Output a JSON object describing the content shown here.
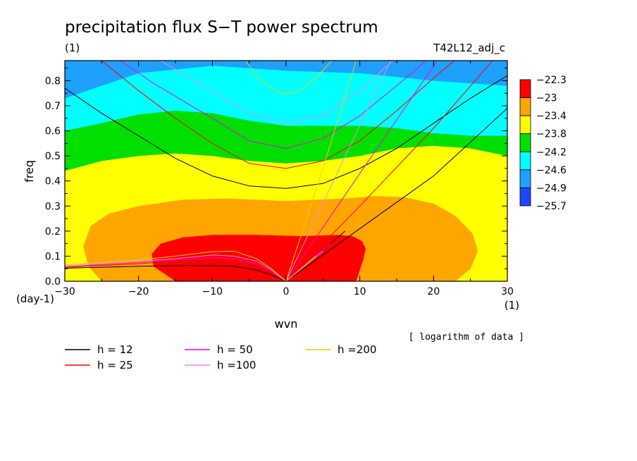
{
  "chart_data": {
    "type": "contour",
    "title": "precipitation flux S−T power spectrum",
    "subtitle_left": "(1)",
    "subtitle_right": "T42L12_adj_c",
    "xlabel": "wvn",
    "ylabel": "freq",
    "x_unit": "(1)",
    "y_unit": "(day-1)",
    "xlim": [
      -30,
      30
    ],
    "ylim": [
      0,
      0.88
    ],
    "x_ticks": [
      -30,
      -20,
      -10,
      0,
      10,
      20,
      30
    ],
    "y_ticks": [
      0.0,
      0.1,
      0.2,
      0.3,
      0.4,
      0.5,
      0.6,
      0.7,
      0.8
    ],
    "note": "[ logarithm of data ]",
    "colorbar": {
      "labels": [
        "-22.3",
        "-23",
        "-23.4",
        "-23.8",
        "-24.2",
        "-24.6",
        "-24.9",
        "-25.7"
      ],
      "colors": [
        "#ff0000",
        "#ffa500",
        "#ffff00",
        "#00e000",
        "#00ffff",
        "#1ea0ff",
        "#1e46ff"
      ]
    },
    "bands": [
      {
        "level": "-24.9",
        "color": "#1ea0ff",
        "top": [
          [
            -30,
            0.88
          ],
          [
            30,
            0.88
          ]
        ],
        "bottom": [
          [
            -30,
            0.73
          ],
          [
            -20,
            0.83
          ],
          [
            -10,
            0.86
          ],
          [
            0,
            0.84
          ],
          [
            10,
            0.83
          ],
          [
            20,
            0.8
          ],
          [
            30,
            0.78
          ]
        ]
      },
      {
        "level": "-24.6",
        "color": "#00ffff",
        "top": [
          [
            -30,
            0.73
          ],
          [
            -20,
            0.83
          ],
          [
            -10,
            0.86
          ],
          [
            0,
            0.84
          ],
          [
            10,
            0.83
          ],
          [
            20,
            0.8
          ],
          [
            30,
            0.78
          ]
        ],
        "bottom": [
          [
            -30,
            0.6
          ],
          [
            -25,
            0.63
          ],
          [
            -20,
            0.665
          ],
          [
            -15,
            0.68
          ],
          [
            -10,
            0.67
          ],
          [
            -5,
            0.64
          ],
          [
            0,
            0.62
          ],
          [
            5,
            0.62
          ],
          [
            10,
            0.62
          ],
          [
            15,
            0.61
          ],
          [
            20,
            0.59
          ],
          [
            25,
            0.58
          ],
          [
            30,
            0.58
          ]
        ]
      },
      {
        "level": "-24.2",
        "color": "#00e000",
        "top": [
          [
            -30,
            0.6
          ],
          [
            -25,
            0.63
          ],
          [
            -20,
            0.665
          ],
          [
            -15,
            0.68
          ],
          [
            -10,
            0.67
          ],
          [
            -5,
            0.64
          ],
          [
            0,
            0.62
          ],
          [
            5,
            0.62
          ],
          [
            10,
            0.62
          ],
          [
            15,
            0.61
          ],
          [
            20,
            0.59
          ],
          [
            25,
            0.58
          ],
          [
            30,
            0.58
          ]
        ],
        "bottom": [
          [
            -30,
            0.44
          ],
          [
            -25,
            0.48
          ],
          [
            -20,
            0.5
          ],
          [
            -15,
            0.51
          ],
          [
            -10,
            0.5
          ],
          [
            -5,
            0.48
          ],
          [
            0,
            0.47
          ],
          [
            5,
            0.48
          ],
          [
            10,
            0.5
          ],
          [
            15,
            0.53
          ],
          [
            20,
            0.54
          ],
          [
            25,
            0.53
          ],
          [
            30,
            0.5
          ]
        ]
      },
      {
        "level": "-23.8",
        "color": "#ffff00",
        "top": [
          [
            -30,
            0.44
          ],
          [
            -25,
            0.48
          ],
          [
            -20,
            0.5
          ],
          [
            -15,
            0.51
          ],
          [
            -10,
            0.5
          ],
          [
            -5,
            0.48
          ],
          [
            0,
            0.47
          ],
          [
            5,
            0.48
          ],
          [
            10,
            0.5
          ],
          [
            15,
            0.53
          ],
          [
            20,
            0.54
          ],
          [
            25,
            0.53
          ],
          [
            30,
            0.5
          ]
        ],
        "bottom": [
          [
            -30,
            0.0
          ],
          [
            30,
            0.0
          ]
        ]
      }
    ],
    "blobs": [
      {
        "level": "-23.4",
        "color": "#ffa500",
        "points": [
          [
            -25,
            0.0
          ],
          [
            -26.8,
            0.06
          ],
          [
            -27.5,
            0.14
          ],
          [
            -26.5,
            0.22
          ],
          [
            -24,
            0.27
          ],
          [
            -20,
            0.3
          ],
          [
            -14,
            0.325
          ],
          [
            -8,
            0.33
          ],
          [
            -4,
            0.325
          ],
          [
            0,
            0.32
          ],
          [
            4,
            0.325
          ],
          [
            8,
            0.33
          ],
          [
            12,
            0.34
          ],
          [
            16,
            0.335
          ],
          [
            20,
            0.31
          ],
          [
            23,
            0.26
          ],
          [
            25.3,
            0.19
          ],
          [
            26,
            0.12
          ],
          [
            25,
            0.05
          ],
          [
            23,
            0.0
          ]
        ]
      },
      {
        "level": "-23",
        "color": "#ff0000",
        "points": [
          [
            -15,
            0.0
          ],
          [
            -18,
            0.06
          ],
          [
            -18.2,
            0.11
          ],
          [
            -17,
            0.15
          ],
          [
            -14,
            0.175
          ],
          [
            -10,
            0.185
          ],
          [
            -4,
            0.185
          ],
          [
            2,
            0.18
          ],
          [
            7,
            0.185
          ],
          [
            9,
            0.18
          ],
          [
            10.3,
            0.16
          ],
          [
            10.8,
            0.13
          ],
          [
            10.5,
            0.09
          ],
          [
            10,
            0.045
          ],
          [
            9.5,
            0.0
          ]
        ]
      }
    ],
    "dispersion_series": [
      {
        "name": "h = 12",
        "color": "#000000",
        "branches": [
          {
            "kind": "ig",
            "points": [
              [
                -30,
                0.77
              ],
              [
                -25,
                0.67
              ],
              [
                -20,
                0.58
              ],
              [
                -15,
                0.49
              ],
              [
                -10,
                0.42
              ],
              [
                -5,
                0.38
              ],
              [
                0,
                0.37
              ],
              [
                5,
                0.39
              ],
              [
                10,
                0.45
              ],
              [
                15,
                0.53
              ],
              [
                20,
                0.63
              ],
              [
                25,
                0.73
              ],
              [
                30,
                0.82
              ]
            ]
          },
          {
            "kind": "kel",
            "points": [
              [
                0,
                0.0
              ],
              [
                10,
                0.21
              ],
              [
                20,
                0.42
              ],
              [
                30,
                0.69
              ]
            ]
          },
          {
            "kind": "mrg",
            "points": [
              [
                0,
                0.0
              ],
              [
                8,
                0.2
              ]
            ]
          },
          {
            "kind": "rossby",
            "points": [
              [
                -30,
                0.052
              ],
              [
                -20,
                0.06
              ],
              [
                -15,
                0.062
              ],
              [
                -10,
                0.063
              ],
              [
                -7,
                0.06
              ],
              [
                -4,
                0.045
              ],
              [
                -2,
                0.025
              ],
              [
                0,
                0.0
              ]
            ]
          }
        ]
      },
      {
        "name": "h = 25",
        "color": "#ff0000",
        "branches": [
          {
            "kind": "ig",
            "points": [
              [
                -25,
                0.88
              ],
              [
                -20,
                0.76
              ],
              [
                -15,
                0.65
              ],
              [
                -10,
                0.55
              ],
              [
                -5,
                0.47
              ],
              [
                0,
                0.45
              ],
              [
                5,
                0.48
              ],
              [
                10,
                0.56
              ],
              [
                15,
                0.68
              ],
              [
                20,
                0.81
              ],
              [
                22.8,
                0.88
              ]
            ]
          },
          {
            "kind": "kel",
            "points": [
              [
                0,
                0.0
              ],
              [
                10,
                0.3
              ],
              [
                20,
                0.61
              ],
              [
                28,
                0.88
              ]
            ]
          },
          {
            "kind": "mrg",
            "points": [
              [
                0,
                0.0
              ],
              [
                7,
                0.18
              ]
            ]
          },
          {
            "kind": "rossby",
            "points": [
              [
                -30,
                0.055
              ],
              [
                -20,
                0.07
              ],
              [
                -15,
                0.08
              ],
              [
                -10,
                0.085
              ],
              [
                -7,
                0.08
              ],
              [
                -4,
                0.06
              ],
              [
                -2,
                0.03
              ],
              [
                0,
                0.0
              ]
            ]
          }
        ]
      },
      {
        "name": "h = 50",
        "color": "#ee00ee",
        "branches": [
          {
            "kind": "ig",
            "points": [
              [
                -22.5,
                0.88
              ],
              [
                -18,
                0.79
              ],
              [
                -14,
                0.72
              ],
              [
                -10,
                0.65
              ],
              [
                -5,
                0.56
              ],
              [
                0,
                0.53
              ],
              [
                5,
                0.57
              ],
              [
                10,
                0.66
              ],
              [
                15,
                0.78
              ],
              [
                19,
                0.88
              ]
            ]
          },
          {
            "kind": "kel",
            "points": [
              [
                0,
                0.0
              ],
              [
                10,
                0.43
              ],
              [
                20.5,
                0.88
              ]
            ]
          },
          {
            "kind": "mrg",
            "points": [
              [
                0,
                0.0
              ],
              [
                6,
                0.15
              ]
            ]
          },
          {
            "kind": "rossby",
            "points": [
              [
                -30,
                0.058
              ],
              [
                -20,
                0.075
              ],
              [
                -15,
                0.085
              ],
              [
                -10,
                0.095
              ],
              [
                -7,
                0.09
              ],
              [
                -4,
                0.07
              ],
              [
                -2,
                0.04
              ],
              [
                0,
                0.0
              ]
            ]
          }
        ]
      },
      {
        "name": "h =100",
        "color": "#ee88ee",
        "branches": [
          {
            "kind": "ig",
            "points": [
              [
                -17,
                0.88
              ],
              [
                -13,
                0.81
              ],
              [
                -9,
                0.74
              ],
              [
                -5,
                0.67
              ],
              [
                0,
                0.63
              ],
              [
                5,
                0.66
              ],
              [
                10,
                0.76
              ],
              [
                14.5,
                0.88
              ]
            ]
          },
          {
            "kind": "kel",
            "points": [
              [
                0,
                0.0
              ],
              [
                9,
                0.56
              ],
              [
                14.2,
                0.88
              ]
            ]
          },
          {
            "kind": "mrg",
            "points": [
              [
                0,
                0.0
              ],
              [
                5,
                0.12
              ]
            ]
          },
          {
            "kind": "rossby",
            "points": [
              [
                -30,
                0.062
              ],
              [
                -20,
                0.08
              ],
              [
                -15,
                0.09
              ],
              [
                -10,
                0.105
              ],
              [
                -7,
                0.1
              ],
              [
                -4,
                0.08
              ],
              [
                -2,
                0.045
              ],
              [
                0,
                0.0
              ]
            ]
          }
        ]
      },
      {
        "name": "h =200",
        "color": "#e6d200",
        "branches": [
          {
            "kind": "ig",
            "points": [
              [
                -5.5,
                0.88
              ],
              [
                -3.5,
                0.8
              ],
              [
                -1.5,
                0.76
              ],
              [
                0,
                0.745
              ],
              [
                2,
                0.76
              ],
              [
                4,
                0.81
              ],
              [
                6.2,
                0.88
              ]
            ]
          },
          {
            "kind": "kel",
            "points": [
              [
                0,
                0.0
              ],
              [
                5,
                0.45
              ],
              [
                9.5,
                0.88
              ]
            ]
          },
          {
            "kind": "mrg",
            "points": [
              [
                0,
                0.0
              ],
              [
                4,
                0.1
              ]
            ]
          },
          {
            "kind": "rossby",
            "points": [
              [
                -30,
                0.065
              ],
              [
                -20,
                0.085
              ],
              [
                -15,
                0.1
              ],
              [
                -10,
                0.118
              ],
              [
                -7,
                0.12
              ],
              [
                -4,
                0.09
              ],
              [
                -2,
                0.05
              ],
              [
                0,
                0.0
              ]
            ]
          }
        ]
      }
    ]
  }
}
